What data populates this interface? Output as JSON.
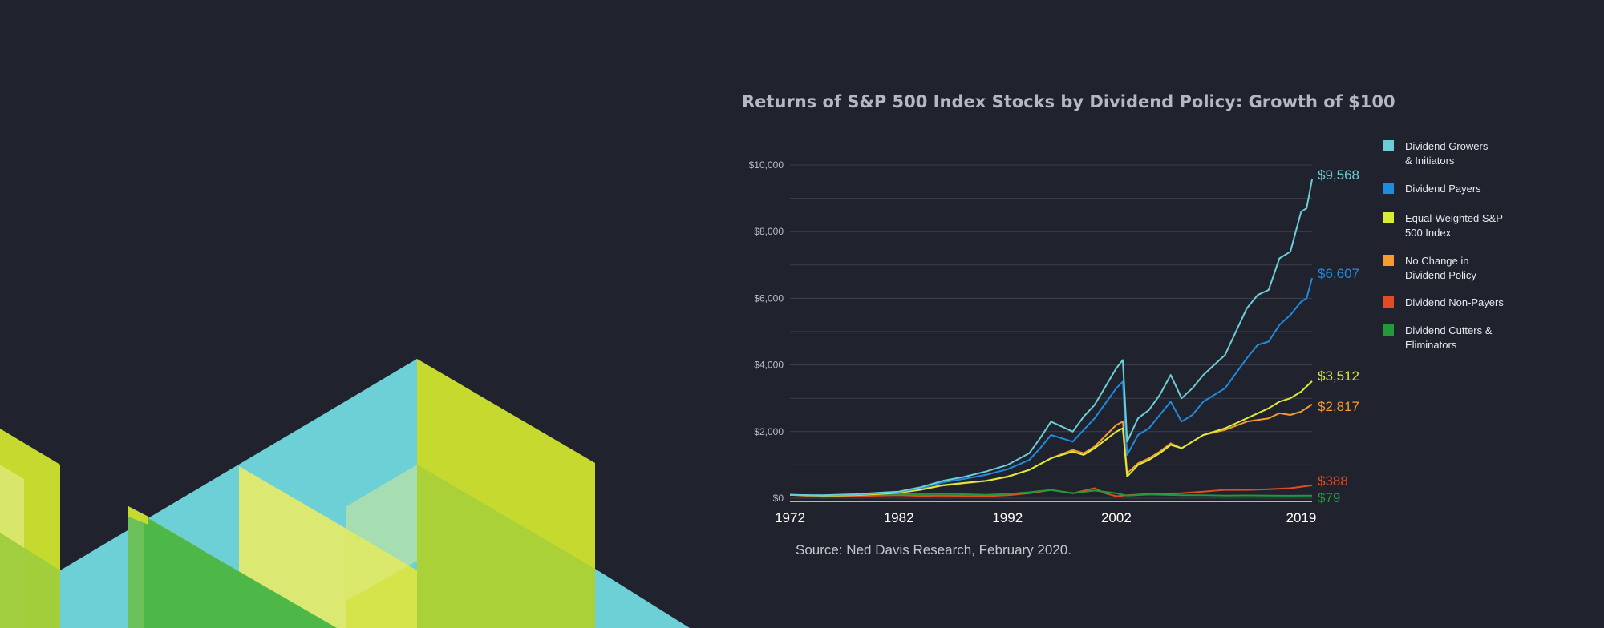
{
  "colors": {
    "background": "#20232e",
    "grid": "#3c404c",
    "axis_text": "#b9bcc4"
  },
  "chart_data": {
    "type": "line",
    "title": "Returns of S&P 500 Index Stocks by Dividend Policy: Growth of $100",
    "source": "Source: Ned Davis Research, February 2020.",
    "xlabel": "",
    "ylabel": "",
    "xlim": [
      1972,
      2020
    ],
    "ylim": [
      0,
      10000
    ],
    "y_ticks": [
      0,
      2000,
      4000,
      6000,
      8000,
      10000
    ],
    "y_tick_labels": [
      "$0",
      "$2,000",
      "$4,000",
      "$6,000",
      "$8,000",
      "$10,000"
    ],
    "x_ticks": [
      1972,
      1982,
      1992,
      2002,
      2019
    ],
    "x_tick_labels": [
      "1972",
      "1982",
      "1992",
      "2002",
      "2019"
    ],
    "grid": true,
    "legend_position": "right",
    "series": [
      {
        "name": "Dividend Growers & Initiators",
        "legend_lines": [
          "Dividend Growers",
          "& Initiators"
        ],
        "color": "#6dcdd6",
        "end_label": "$9,568",
        "x": [
          1972,
          1975,
          1978,
          1980,
          1982,
          1984,
          1986,
          1988,
          1990,
          1992,
          1994,
          1995,
          1996,
          1998,
          1999,
          2000,
          2002,
          2002.6,
          2003,
          2004,
          2005,
          2006,
          2007,
          2008,
          2009,
          2010,
          2012,
          2014,
          2015,
          2016,
          2017,
          2018,
          2019,
          2019.5,
          2020
        ],
        "y": [
          100,
          90,
          120,
          160,
          200,
          330,
          520,
          640,
          800,
          1000,
          1350,
          1800,
          2300,
          2000,
          2450,
          2800,
          3900,
          4150,
          1700,
          2400,
          2650,
          3100,
          3700,
          3000,
          3300,
          3700,
          4300,
          5700,
          6100,
          6250,
          7200,
          7400,
          8600,
          8700,
          9568
        ]
      },
      {
        "name": "Dividend Payers",
        "legend_lines": [
          "Dividend Payers"
        ],
        "color": "#1f8bdc",
        "end_label": "$6,607",
        "x": [
          1972,
          1975,
          1978,
          1980,
          1982,
          1984,
          1986,
          1988,
          1990,
          1992,
          1994,
          1995,
          1996,
          1998,
          1999,
          2000,
          2002,
          2002.6,
          2003,
          2004,
          2005,
          2006,
          2007,
          2008,
          2009,
          2010,
          2012,
          2014,
          2015,
          2016,
          2017,
          2018,
          2019,
          2019.5,
          2020
        ],
        "y": [
          100,
          85,
          110,
          150,
          190,
          300,
          470,
          580,
          700,
          870,
          1150,
          1500,
          1900,
          1700,
          2050,
          2400,
          3300,
          3500,
          1300,
          1900,
          2100,
          2500,
          2900,
          2300,
          2500,
          2900,
          3300,
          4200,
          4600,
          4700,
          5200,
          5500,
          5900,
          6000,
          6607
        ]
      },
      {
        "name": "Equal-Weighted S&P 500 Index",
        "legend_lines": [
          "Equal-Weighted S&P",
          "500 Index"
        ],
        "color": "#d9ec36",
        "end_label": "$3,512",
        "x": [
          1972,
          1975,
          1978,
          1980,
          1982,
          1984,
          1986,
          1988,
          1990,
          1992,
          1994,
          1996,
          1998,
          1999,
          2000,
          2002,
          2002.6,
          2003,
          2004,
          2005,
          2006,
          2007,
          2008,
          2009,
          2010,
          2012,
          2014,
          2016,
          2017,
          2018,
          2019,
          2020
        ],
        "y": [
          100,
          75,
          95,
          130,
          170,
          260,
          390,
          460,
          520,
          650,
          850,
          1200,
          1400,
          1300,
          1500,
          2000,
          2100,
          650,
          1000,
          1150,
          1350,
          1600,
          1500,
          1700,
          1900,
          2100,
          2400,
          2700,
          2900,
          3000,
          3200,
          3512
        ]
      },
      {
        "name": "No Change in Dividend Policy",
        "legend_lines": [
          "No Change in",
          "Dividend Policy"
        ],
        "color": "#f59b30",
        "end_label": "$2,817",
        "x": [
          1972,
          1975,
          1978,
          1980,
          1982,
          1984,
          1986,
          1988,
          1990,
          1992,
          1994,
          1996,
          1998,
          1999,
          2000,
          2002,
          2002.6,
          2003,
          2004,
          2005,
          2006,
          2007,
          2008,
          2009,
          2010,
          2012,
          2014,
          2016,
          2017,
          2018,
          2019,
          2020
        ],
        "y": [
          100,
          70,
          90,
          120,
          160,
          250,
          380,
          450,
          520,
          640,
          850,
          1200,
          1450,
          1350,
          1550,
          2200,
          2300,
          750,
          1050,
          1200,
          1400,
          1650,
          1500,
          1700,
          1900,
          2050,
          2300,
          2400,
          2550,
          2500,
          2600,
          2817
        ]
      },
      {
        "name": "Dividend Non-Payers",
        "legend_lines": [
          "Dividend Non-Payers"
        ],
        "color": "#e24c25",
        "end_label": "$388",
        "x": [
          1972,
          1975,
          1978,
          1980,
          1982,
          1984,
          1986,
          1988,
          1990,
          1992,
          1994,
          1996,
          1998,
          2000,
          2001,
          2002,
          2003,
          2005,
          2008,
          2010,
          2012,
          2014,
          2016,
          2018,
          2020
        ],
        "y": [
          100,
          40,
          60,
          80,
          90,
          70,
          80,
          70,
          60,
          90,
          150,
          250,
          150,
          300,
          150,
          60,
          90,
          130,
          150,
          200,
          250,
          250,
          270,
          300,
          388
        ]
      },
      {
        "name": "Dividend Cutters & Eliminators",
        "legend_lines": [
          "Dividend Cutters &",
          "Eliminators"
        ],
        "color": "#22993a",
        "end_label": "$79",
        "x": [
          1972,
          1975,
          1978,
          1980,
          1982,
          1984,
          1986,
          1988,
          1990,
          1992,
          1994,
          1996,
          1998,
          2000,
          2002,
          2003,
          2005,
          2008,
          2010,
          2012,
          2014,
          2016,
          2018,
          2020
        ],
        "y": [
          100,
          70,
          90,
          110,
          130,
          120,
          130,
          120,
          100,
          130,
          180,
          250,
          150,
          230,
          150,
          80,
          110,
          90,
          90,
          80,
          85,
          80,
          75,
          79
        ]
      }
    ]
  }
}
